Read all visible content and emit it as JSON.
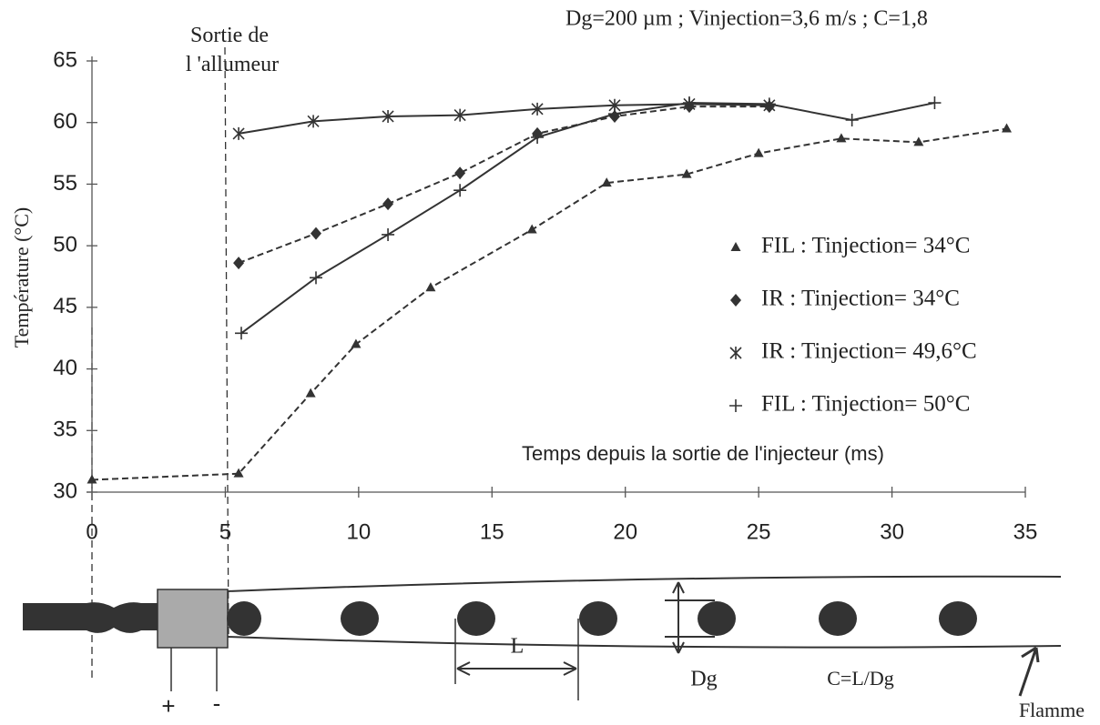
{
  "chart_data": {
    "type": "line",
    "title": "Dg=200 µm ; Vinjection=3,6 m/s ; C=1,8",
    "annotation": "Sortie de l 'allumeur",
    "x_label": "Temps depuis la sortie de l'injecteur (ms)",
    "y_label": "Température (°C)",
    "xlim": [
      0,
      35
    ],
    "xticks": [
      0,
      5,
      10,
      15,
      20,
      25,
      30,
      35
    ],
    "ylim": [
      30,
      65
    ],
    "yticks": [
      30,
      35,
      40,
      45,
      50,
      55,
      60,
      65
    ],
    "series": [
      {
        "name": "FIL : Tinjection= 34°C",
        "color": "#333333",
        "marker": "triangle",
        "dashed": true,
        "x": [
          0,
          5.5,
          8.2,
          9.9,
          12.7,
          16.5,
          19.3,
          22.3,
          25.0,
          28.1,
          31.0,
          34.3
        ],
        "values": [
          31.0,
          31.5,
          38.0,
          42.0,
          46.6,
          51.3,
          55.1,
          55.8,
          57.5,
          58.7,
          58.4,
          59.5
        ]
      },
      {
        "name": "IR :   Tinjection= 34°C",
        "color": "#333333",
        "marker": "diamond",
        "dashed": true,
        "x": [
          5.5,
          8.4,
          11.1,
          13.8,
          16.7,
          19.6,
          22.4,
          25.4
        ],
        "values": [
          48.6,
          51.0,
          53.4,
          55.9,
          59.1,
          60.5,
          61.3,
          61.3
        ]
      },
      {
        "name": "IR :   Tinjection= 49,6°C",
        "color": "#333333",
        "marker": "star",
        "dashed": false,
        "x": [
          5.5,
          8.3,
          11.1,
          13.8,
          16.7,
          19.6,
          22.4,
          25.4
        ],
        "values": [
          59.1,
          60.1,
          60.5,
          60.6,
          61.1,
          61.4,
          61.5,
          61.4
        ]
      },
      {
        "name": "FIL : Tinjection= 50°C",
        "color": "#333333",
        "marker": "plus",
        "dashed": false,
        "x": [
          5.6,
          8.4,
          11.1,
          13.8,
          16.7,
          19.6,
          22.4,
          25.4,
          28.5,
          31.6
        ],
        "values": [
          42.9,
          47.4,
          50.9,
          54.5,
          58.8,
          60.7,
          61.6,
          61.5,
          60.2,
          61.6
        ]
      }
    ]
  },
  "diagram": {
    "plus": "+",
    "minus": "-",
    "spacing": "L",
    "diameter": "Dg",
    "ratio": "C=L/Dg",
    "flame": "Flamme"
  }
}
